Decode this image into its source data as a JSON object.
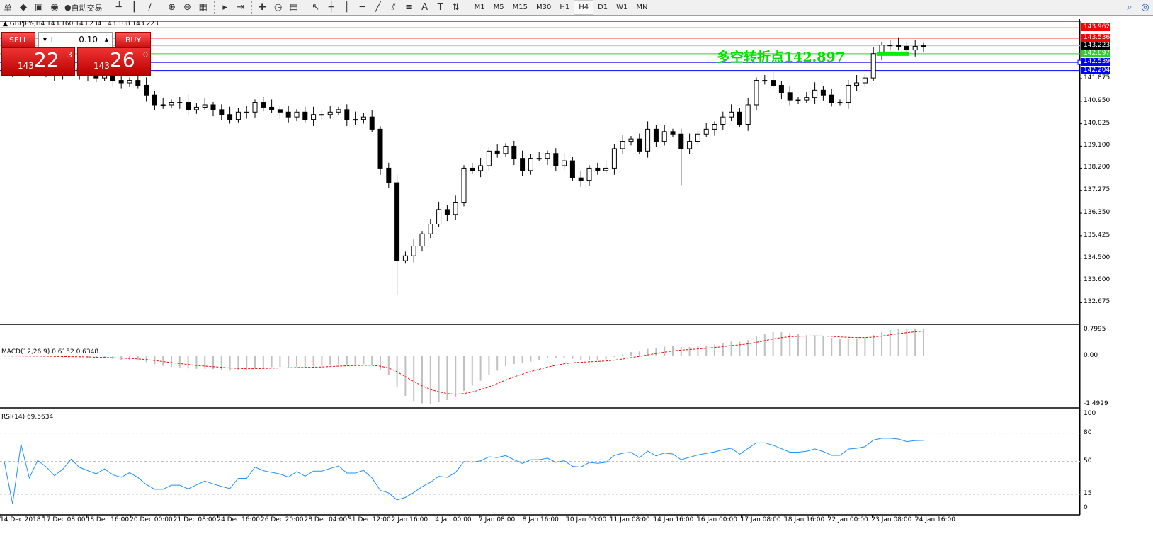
{
  "toolbar": {
    "items": [
      {
        "icon": "menu-text",
        "label": "单"
      },
      {
        "icon": "orders-icon",
        "label": ""
      },
      {
        "icon": "accounts-icon",
        "label": ""
      },
      {
        "icon": "signal-icon",
        "label": ""
      },
      {
        "icon": "autotrade-icon",
        "label": "自动交易"
      }
    ],
    "chart_tools": [
      "bar-chart-icon",
      "candle-chart-icon",
      "line-chart-icon",
      "zoom-in-icon",
      "zoom-out-icon",
      "tile-icon",
      "autoscroll-icon",
      "chart-shift-icon",
      "new-indicator-icon",
      "periods-icon",
      "templates-icon",
      "cursor-icon",
      "crosshair-icon",
      "vertical-line-icon",
      "horizontal-line-icon",
      "trendline-icon",
      "equidistant-channel-icon",
      "fibonacci-icon",
      "text-icon",
      "text-label-icon",
      "arrows-icon"
    ],
    "timeframes": [
      "M1",
      "M5",
      "M15",
      "M30",
      "H1",
      "H4",
      "D1",
      "W1",
      "MN"
    ],
    "active_timeframe": "H4"
  },
  "chart_header": {
    "symbol": "GBPJPY-,H4",
    "ohlc": "143.160 143.234 143.108 143.223"
  },
  "trade_panel": {
    "sell": "SELL",
    "buy": "BUY",
    "volume": "0.10",
    "sell_price": {
      "small": "143",
      "big": "22",
      "sup": "3"
    },
    "buy_price": {
      "small": "143",
      "big": "26",
      "sup": "0"
    }
  },
  "annotation": {
    "text": "多空转折点142.897",
    "color": "#00e000"
  },
  "price_axis": [
    "141.875",
    "140.950",
    "140.025",
    "139.100",
    "138.200",
    "137.275",
    "136.350",
    "135.425",
    "134.500",
    "133.600",
    "132.675"
  ],
  "price_lines": [
    {
      "value": 143.962,
      "label": "143.962",
      "color": "#ff0000"
    },
    {
      "value": 143.536,
      "label": "143.536",
      "color": "#ff0000"
    },
    {
      "value": 143.223,
      "label": "143.223",
      "color": "#000000",
      "line": "#c0c0c0"
    },
    {
      "value": 142.897,
      "label": "142.897",
      "color": "#33cc33"
    },
    {
      "value": 142.539,
      "label": "142.539",
      "color": "#0000ff"
    },
    {
      "value": 142.204,
      "label": "142.204",
      "color": "#0000ff"
    }
  ],
  "chart_data": {
    "type": "candlestick",
    "symbol": "GBPJPY",
    "timeframe": "H4",
    "ylim": [
      132.675,
      143.962
    ],
    "closes": [
      142.3,
      142.2,
      142.4,
      142.1,
      142.3,
      142.2,
      142.0,
      142.1,
      142.3,
      142.1,
      142.0,
      141.9,
      142.0,
      141.8,
      141.7,
      141.8,
      141.6,
      141.2,
      140.8,
      140.8,
      140.9,
      140.9,
      140.6,
      140.7,
      140.8,
      140.6,
      140.4,
      140.2,
      140.5,
      140.5,
      140.9,
      140.7,
      140.6,
      140.5,
      140.3,
      140.5,
      140.2,
      140.4,
      140.4,
      140.5,
      140.6,
      140.2,
      140.2,
      140.3,
      139.8,
      138.2,
      137.6,
      134.4,
      134.6,
      135.0,
      135.5,
      135.9,
      136.5,
      136.3,
      136.8,
      138.2,
      138.1,
      138.3,
      138.9,
      138.8,
      139.1,
      138.6,
      138.1,
      138.6,
      138.6,
      138.8,
      138.3,
      138.5,
      137.8,
      137.7,
      138.2,
      138.1,
      138.2,
      139.0,
      139.3,
      139.4,
      138.9,
      139.8,
      139.3,
      139.7,
      139.6,
      139.0,
      139.3,
      139.6,
      139.8,
      140.0,
      140.3,
      140.5,
      140.0,
      140.8,
      141.8,
      141.8,
      141.6,
      141.3,
      141.0,
      141.0,
      141.1,
      141.4,
      141.2,
      140.9,
      140.9,
      141.6,
      141.7,
      141.9,
      142.9,
      143.25,
      143.25,
      143.2,
      143.05,
      143.2,
      143.223
    ],
    "time_labels": [
      "14 Dec 2018",
      "17 Dec 08:00",
      "18 Dec 16:00",
      "20 Dec 00:00",
      "21 Dec 08:00",
      "24 Dec 16:00",
      "26 Dec 20:00",
      "28 Dec 04:00",
      "31 Dec 12:00",
      "2 Jan 16:00",
      "4 Jan 00:00",
      "7 Jan 08:00",
      "8 Jan 16:00",
      "10 Jan 00:00",
      "11 Jan 08:00",
      "14 Jan 16:00",
      "16 Jan 00:00",
      "17 Jan 08:00",
      "18 Jan 16:00",
      "22 Jan 00:00",
      "23 Jan 08:00",
      "24 Jan 16:00"
    ]
  },
  "macd": {
    "label": "MACD(12,26,9) 0.6152 0.6348",
    "axis": [
      "0.7995",
      "0.00",
      "-1.4929"
    ],
    "range": [
      -1.4929,
      0.7995
    ]
  },
  "rsi": {
    "label": "RSI(14) 69.5634",
    "axis": [
      "100",
      "80",
      "50",
      "15",
      "0"
    ],
    "levels": [
      80,
      50,
      15
    ]
  }
}
